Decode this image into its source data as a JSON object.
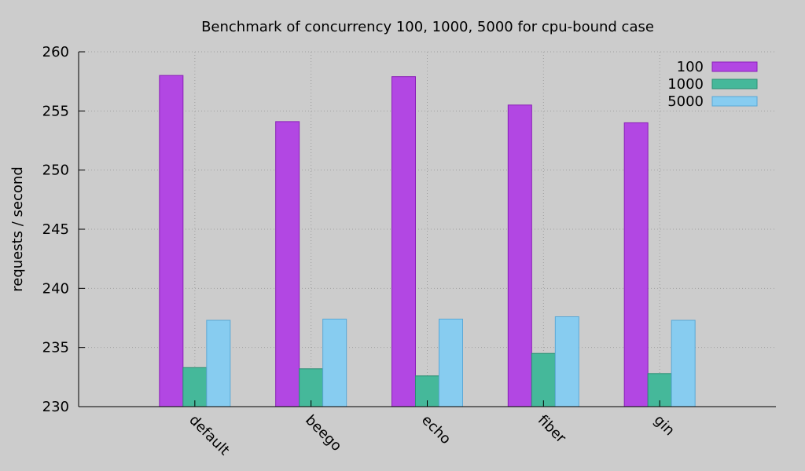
{
  "chart_data": {
    "type": "bar",
    "title": "Benchmark of concurrency 100, 1000, 5000 for cpu-bound case",
    "ylabel": "requests / second",
    "xlabel": "",
    "categories": [
      "default",
      "beego",
      "echo",
      "fiber",
      "gin"
    ],
    "series": [
      {
        "name": "100",
        "color": "#b247e3",
        "stroke": "#8a1fb8",
        "values": [
          258.0,
          254.1,
          257.9,
          255.5,
          254.0
        ]
      },
      {
        "name": "1000",
        "color": "#45b89a",
        "stroke": "#2a8f74",
        "values": [
          233.3,
          233.2,
          232.6,
          234.5,
          232.8
        ]
      },
      {
        "name": "5000",
        "color": "#87ccf0",
        "stroke": "#5aa8d6",
        "values": [
          237.3,
          237.4,
          237.4,
          237.6,
          237.3
        ]
      }
    ],
    "ylim": [
      230,
      260
    ],
    "yticks": [
      230,
      235,
      240,
      245,
      250,
      255,
      260
    ],
    "grid": true,
    "legend_position": "top-right"
  }
}
